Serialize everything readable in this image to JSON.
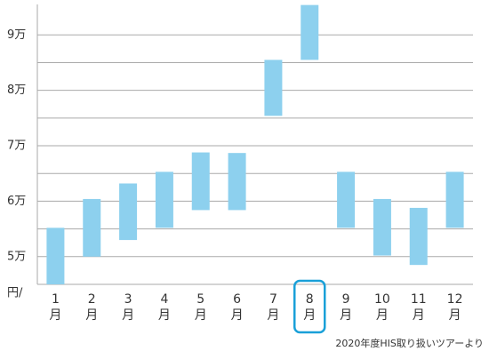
{
  "chart_data": {
    "type": "range-bar",
    "categories": [
      "1月",
      "2月",
      "3月",
      "4月",
      "5月",
      "6月",
      "7月",
      "8月",
      "9月",
      "10月",
      "11月",
      "12月"
    ],
    "series": [
      {
        "name": "low",
        "values": [
          45000,
          50000,
          53000,
          55200,
          58400,
          58400,
          75400,
          85500,
          55200,
          50200,
          48500,
          55200
        ]
      },
      {
        "name": "high",
        "values": [
          55200,
          60400,
          63200,
          65300,
          68800,
          68700,
          85500,
          95400,
          65300,
          60400,
          58800,
          65300
        ]
      }
    ],
    "color": "#8dd0ee",
    "ylim": [
      45000,
      95500
    ],
    "yticks": [
      {
        "value": 50000,
        "label": "5万"
      },
      {
        "value": 60000,
        "label": "6万"
      },
      {
        "value": 70000,
        "label": "7万"
      },
      {
        "value": 80000,
        "label": "8万"
      },
      {
        "value": 90000,
        "label": "9万"
      }
    ],
    "minor_grid": [
      55000,
      65000,
      75000,
      85000
    ],
    "y_unit": "円/",
    "highlight_index": 7,
    "highlight_color": "#1aa0d8",
    "source": "2020年度HIS取り扱いツアーより",
    "grid": true
  }
}
